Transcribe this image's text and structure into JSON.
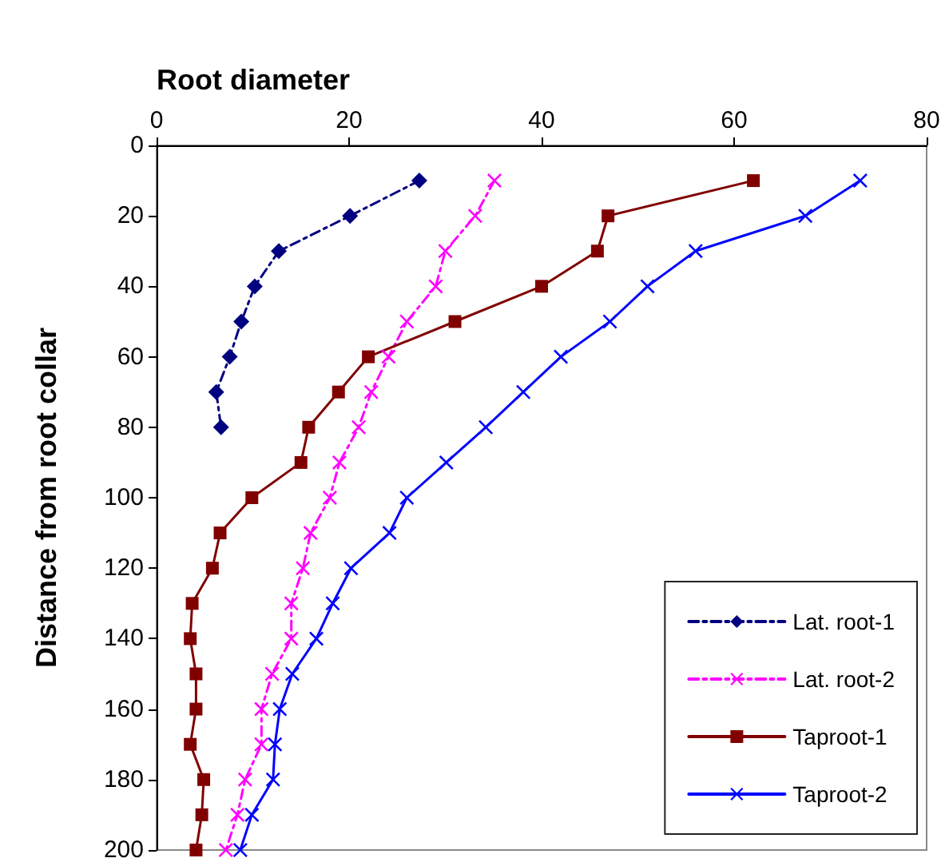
{
  "chart_data": {
    "type": "line",
    "xlabel": "Root diameter",
    "ylabel": "Distance from root collar",
    "xlim": [
      0,
      80
    ],
    "xticks": [
      0,
      20,
      40,
      60,
      80
    ],
    "ylim": [
      200,
      0
    ],
    "yticks": [
      0,
      20,
      40,
      60,
      80,
      100,
      120,
      140,
      160,
      180,
      200
    ],
    "grid": false,
    "legend": "bottom right",
    "series": [
      {
        "name": "Lat. root-1",
        "color": "#000080",
        "marker": "diamond",
        "line_style": "dashed",
        "x": [
          27.3,
          20.1,
          12.7,
          10.2,
          8.8,
          7.6,
          6.2,
          6.7
        ],
        "values": [
          10,
          20,
          30,
          40,
          50,
          60,
          70,
          80
        ]
      },
      {
        "name": "Lat. root-2",
        "color": "#ff00ff",
        "marker": "cross",
        "line_style": "dashed",
        "x": [
          35.1,
          33.1,
          30.0,
          29.0,
          26.0,
          24.1,
          22.3,
          21.0,
          19.0,
          18.0,
          16.0,
          15.2,
          14.0,
          14.0,
          12.0,
          10.9,
          10.9,
          9.2,
          8.4,
          7.2
        ],
        "values": [
          10,
          20,
          30,
          40,
          50,
          60,
          70,
          80,
          90,
          100,
          110,
          120,
          130,
          140,
          150,
          160,
          170,
          180,
          190,
          200
        ]
      },
      {
        "name": "Taproot-1",
        "color": "#800000",
        "marker": "square",
        "line_style": "solid",
        "x": [
          62.0,
          46.9,
          45.8,
          40.0,
          31.0,
          22.0,
          18.9,
          15.8,
          15.0,
          9.9,
          6.6,
          5.8,
          3.7,
          3.5,
          4.1,
          4.1,
          3.5,
          4.9,
          4.7,
          4.1
        ],
        "values": [
          10,
          20,
          30,
          40,
          50,
          60,
          70,
          80,
          90,
          100,
          110,
          120,
          130,
          140,
          150,
          160,
          170,
          180,
          190,
          200
        ]
      },
      {
        "name": "Taproot-2",
        "color": "#0000ff",
        "marker": "cross",
        "line_style": "solid",
        "x": [
          73.1,
          67.4,
          56.0,
          51.0,
          47.1,
          42.0,
          38.1,
          34.2,
          30.1,
          26.0,
          24.2,
          20.2,
          18.3,
          16.6,
          14.1,
          12.8,
          12.3,
          12.1,
          9.9,
          8.7
        ],
        "values": [
          10,
          20,
          30,
          40,
          50,
          60,
          70,
          80,
          90,
          100,
          110,
          120,
          130,
          140,
          150,
          160,
          170,
          180,
          190,
          200
        ]
      }
    ]
  }
}
